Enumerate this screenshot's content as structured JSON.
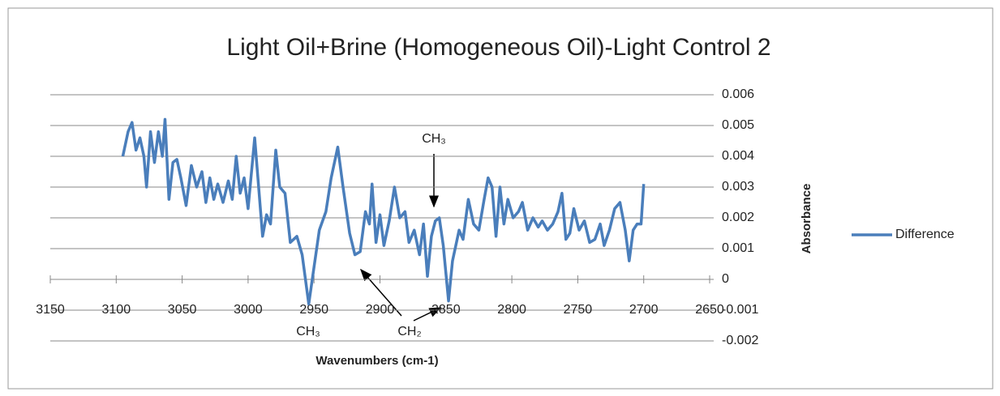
{
  "chart_data": {
    "type": "line",
    "title": "Light Oil+Brine (Homogeneous Oil)-Light Control 2",
    "x_label": "Wavenumbers (cm-1)",
    "y_label": "Absorbance",
    "xlim": [
      3150,
      2650
    ],
    "xticks": [
      3150,
      3100,
      3050,
      3000,
      2950,
      2900,
      2850,
      2800,
      2750,
      2700,
      2650
    ],
    "ylim": [
      -0.002,
      0.006
    ],
    "yticks": [
      -0.002,
      -0.001,
      0,
      0.001,
      0.002,
      0.003,
      0.004,
      0.005,
      0.006
    ],
    "grid": true,
    "legend": "right",
    "annotations": [
      "CH₃",
      "CH₃",
      "CH₂"
    ],
    "x": [
      3095,
      3091,
      3088,
      3085,
      3082,
      3079,
      3077,
      3074,
      3071,
      3068,
      3065,
      3063,
      3060,
      3057,
      3054,
      3051,
      3047,
      3043,
      3039,
      3035,
      3032,
      3029,
      3026,
      3023,
      3019,
      3015,
      3012,
      3009,
      3006,
      3003,
      3000,
      2995,
      2992,
      2989,
      2986,
      2983,
      2979,
      2976,
      2972,
      2968,
      2963,
      2959,
      2954,
      2950,
      2946,
      2941,
      2937,
      2932,
      2928,
      2923,
      2919,
      2915,
      2911,
      2908,
      2906,
      2903,
      2900,
      2897,
      2893,
      2889,
      2885,
      2881,
      2878,
      2874,
      2870,
      2867,
      2864,
      2861,
      2858,
      2855,
      2852,
      2848,
      2845,
      2840,
      2837,
      2833,
      2829,
      2825,
      2821,
      2818,
      2815,
      2812,
      2809,
      2806,
      2803,
      2799,
      2795,
      2792,
      2788,
      2784,
      2780,
      2777,
      2773,
      2769,
      2765,
      2762,
      2759,
      2756,
      2753,
      2749,
      2745,
      2741,
      2737,
      2733,
      2730,
      2726,
      2722,
      2718,
      2714,
      2711,
      2708,
      2705,
      2702,
      2700
    ],
    "series": [
      {
        "name": "Difference",
        "color": "#4a7ebb",
        "values": [
          0.004,
          0.0048,
          0.0051,
          0.0042,
          0.0046,
          0.004,
          0.003,
          0.0048,
          0.0038,
          0.0048,
          0.004,
          0.0052,
          0.0026,
          0.0038,
          0.0039,
          0.0033,
          0.0024,
          0.0037,
          0.003,
          0.0035,
          0.0025,
          0.0033,
          0.0026,
          0.0031,
          0.0025,
          0.0032,
          0.0026,
          0.004,
          0.0028,
          0.0033,
          0.0023,
          0.0046,
          0.003,
          0.0014,
          0.0021,
          0.0018,
          0.0042,
          0.003,
          0.0028,
          0.0012,
          0.0014,
          0.0008,
          -0.0008,
          0.0004,
          0.0016,
          0.0022,
          0.0033,
          0.0043,
          0.003,
          0.0015,
          0.0008,
          0.0009,
          0.0022,
          0.0018,
          0.0031,
          0.0012,
          0.0021,
          0.0011,
          0.0019,
          0.003,
          0.002,
          0.0022,
          0.0012,
          0.0016,
          0.0008,
          0.0018,
          0.0001,
          0.0014,
          0.0019,
          0.002,
          0.0011,
          -0.0007,
          0.0006,
          0.0016,
          0.0013,
          0.0026,
          0.0018,
          0.0016,
          0.0026,
          0.0033,
          0.003,
          0.0014,
          0.003,
          0.0018,
          0.0026,
          0.002,
          0.0022,
          0.0025,
          0.0016,
          0.002,
          0.0017,
          0.0019,
          0.0016,
          0.0018,
          0.0022,
          0.0028,
          0.0013,
          0.0015,
          0.0023,
          0.0016,
          0.0019,
          0.0012,
          0.0013,
          0.0018,
          0.0011,
          0.0016,
          0.0023,
          0.0025,
          0.0016,
          0.0006,
          0.0016,
          0.0018,
          0.0018,
          0.0031
        ]
      }
    ]
  }
}
